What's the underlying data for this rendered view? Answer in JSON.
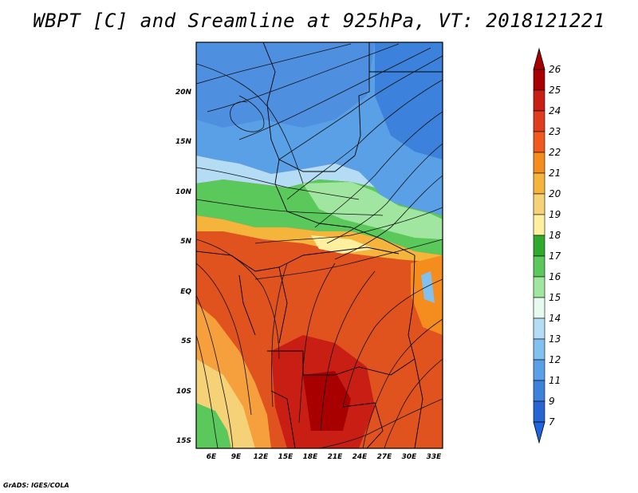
{
  "title": "WBPT [C] and Sreamline at 925hPa, VT: 2018121221",
  "credit": "GrADS: IGES/COLA",
  "map": {
    "lat_ticks": [
      "20N",
      "15N",
      "10N",
      "5N",
      "EQ",
      "5S",
      "10S",
      "15S"
    ],
    "lon_ticks": [
      "6E",
      "9E",
      "12E",
      "15E",
      "18E",
      "21E",
      "24E",
      "27E",
      "30E",
      "33E"
    ]
  },
  "colorbar": {
    "levels": [
      "26",
      "25",
      "24",
      "23",
      "22",
      "21",
      "20",
      "19",
      "18",
      "17",
      "16",
      "15",
      "14",
      "13",
      "12",
      "11",
      "9",
      "7"
    ],
    "colors": [
      "#a80000",
      "#c81e14",
      "#e03c1e",
      "#f05a1e",
      "#f58c1e",
      "#f5b43c",
      "#f5d278",
      "#fff0a0",
      "#2faa2f",
      "#5ac85a",
      "#a0e6a0",
      "#e6faf0",
      "#b4dcf5",
      "#82c0f0",
      "#5aa0e6",
      "#3c82dc",
      "#2864d2"
    ]
  }
}
